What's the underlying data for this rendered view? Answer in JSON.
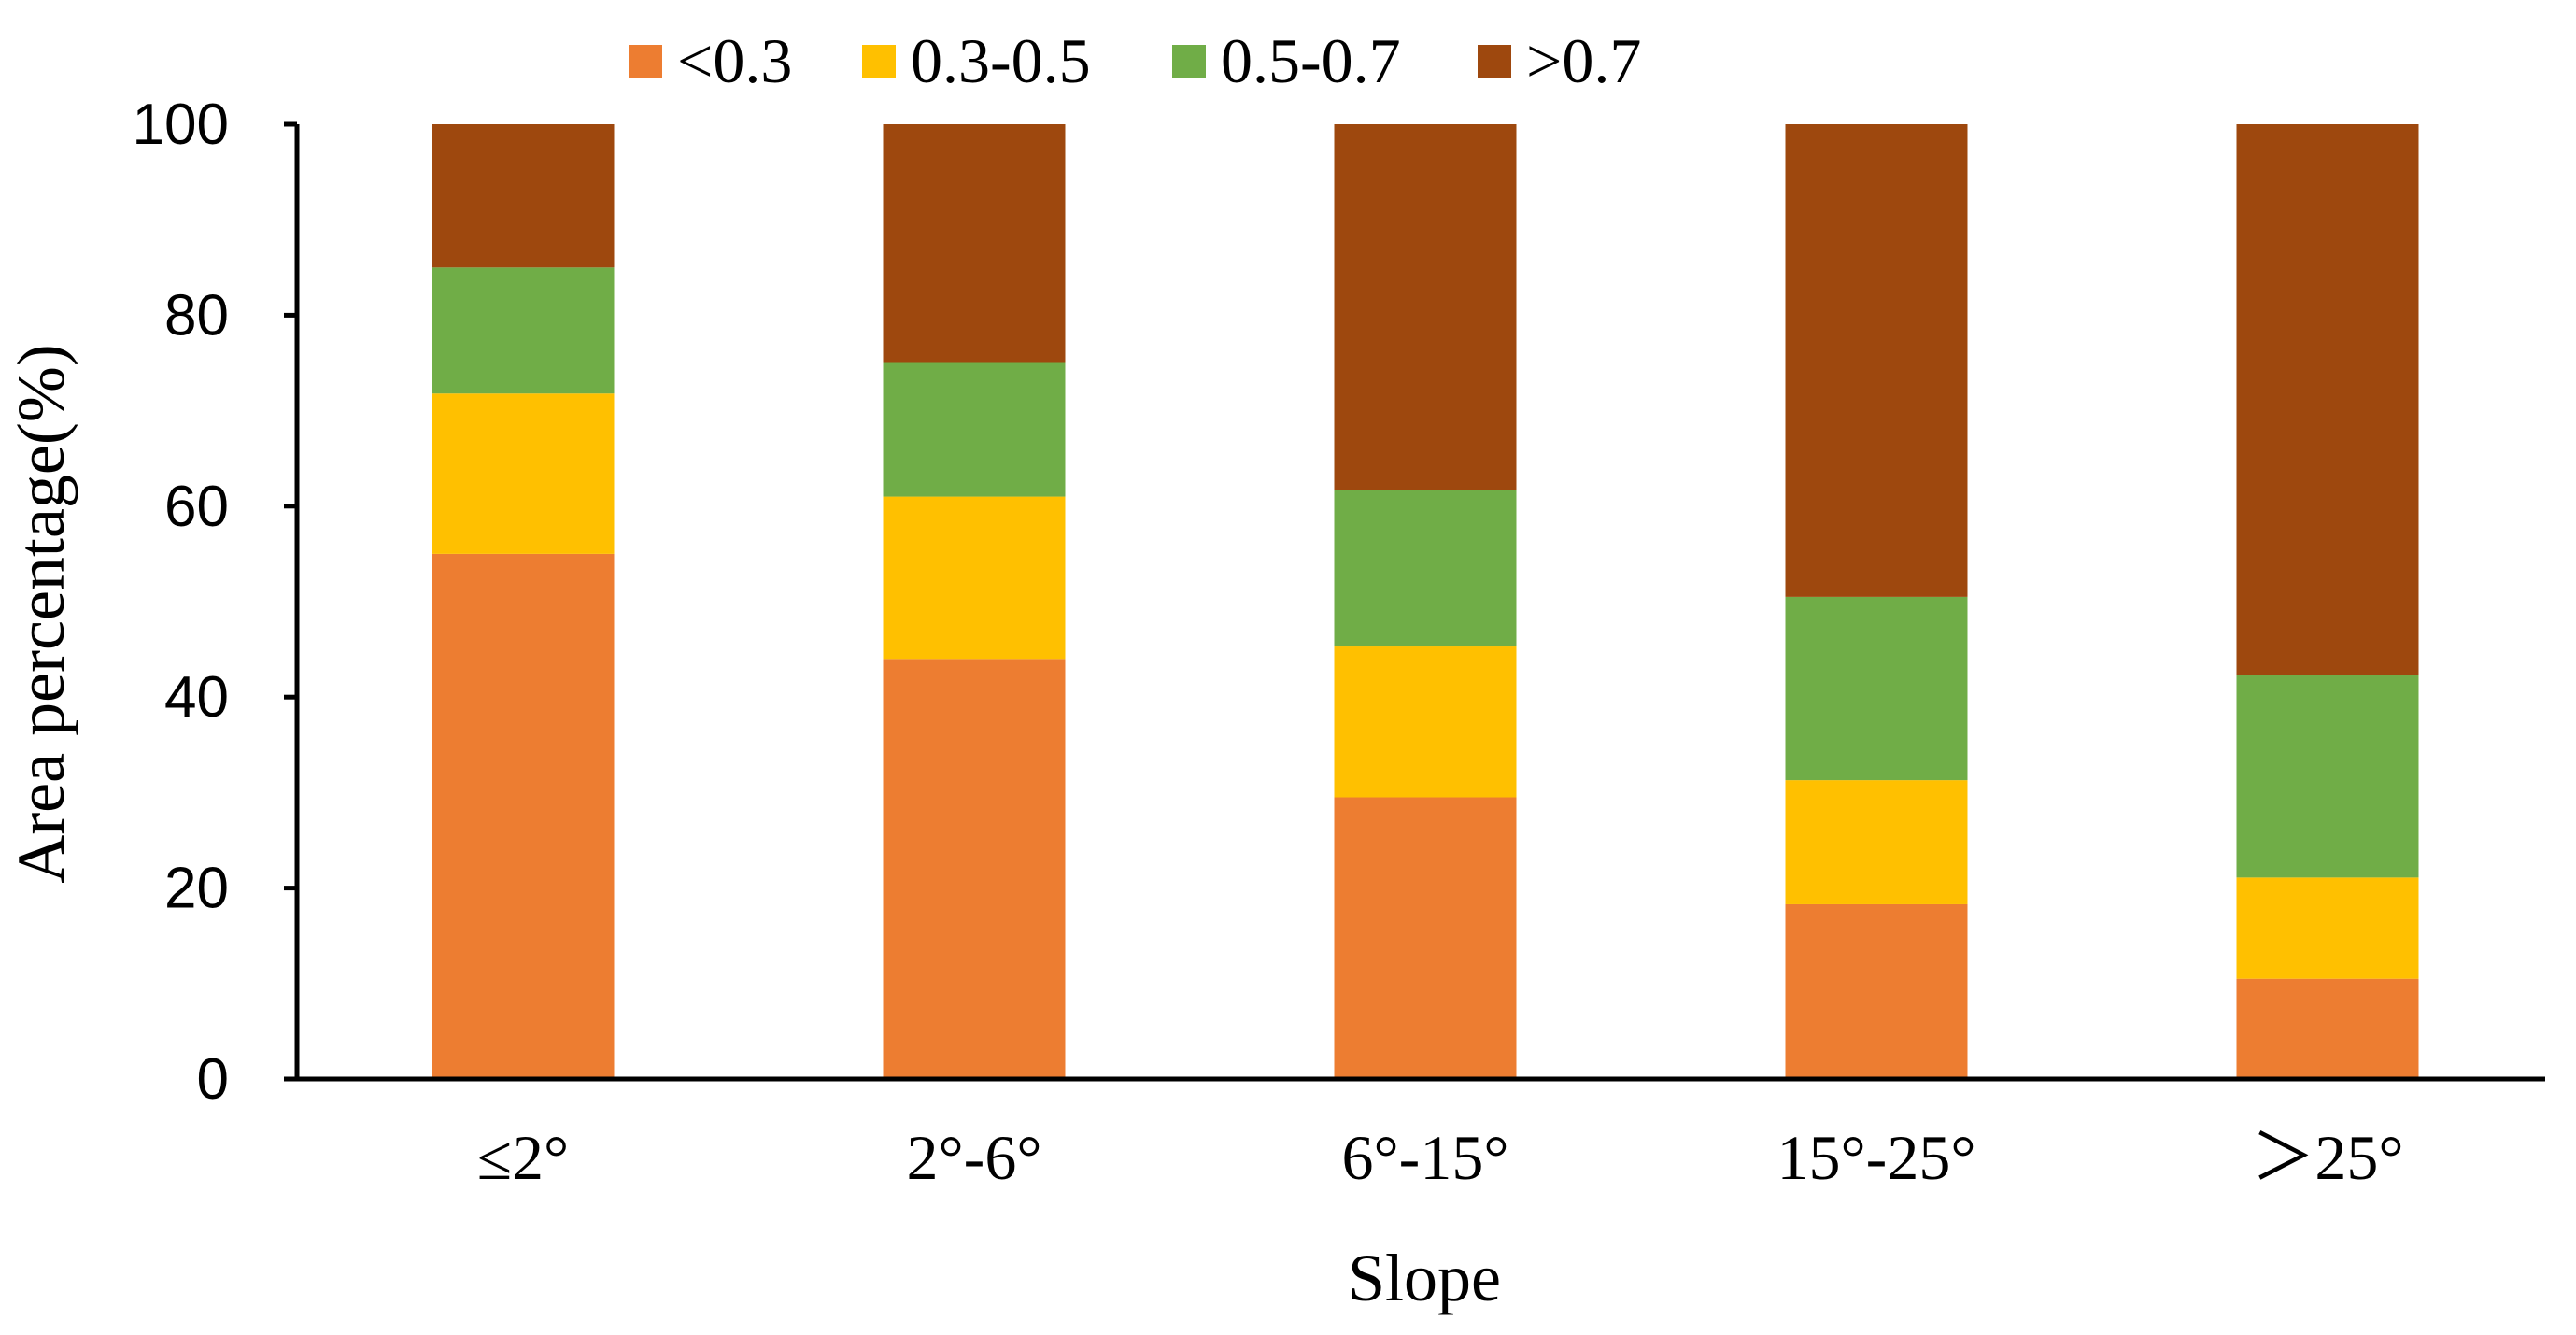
{
  "chart_data": {
    "type": "bar",
    "stacked": true,
    "categories": [
      "≤2°",
      "2°-6°",
      "6°-15°",
      "15°-25°",
      "＞25°"
    ],
    "series": [
      {
        "name": "<0.3",
        "color": "#ED7D31",
        "values": [
          55,
          44,
          29.5,
          18.3,
          10.5
        ]
      },
      {
        "name": "0.3-0.5",
        "color": "#FFC000",
        "values": [
          16.8,
          17,
          15.8,
          13,
          10.6
        ]
      },
      {
        "name": "0.5-0.7",
        "color": "#70AD47",
        "values": [
          13.2,
          14,
          16.4,
          19.2,
          21.2
        ]
      },
      {
        "name": ">0.7",
        "color": "#9E480E",
        "values": [
          15,
          25,
          38.3,
          49.5,
          57.7
        ]
      }
    ],
    "title": "",
    "xlabel": "Slope",
    "ylabel": "Area  percentage(%)",
    "ylim": [
      0,
      100
    ],
    "yticks": [
      0,
      20,
      40,
      60,
      80,
      100
    ],
    "grid": false,
    "legend_position": "top"
  }
}
